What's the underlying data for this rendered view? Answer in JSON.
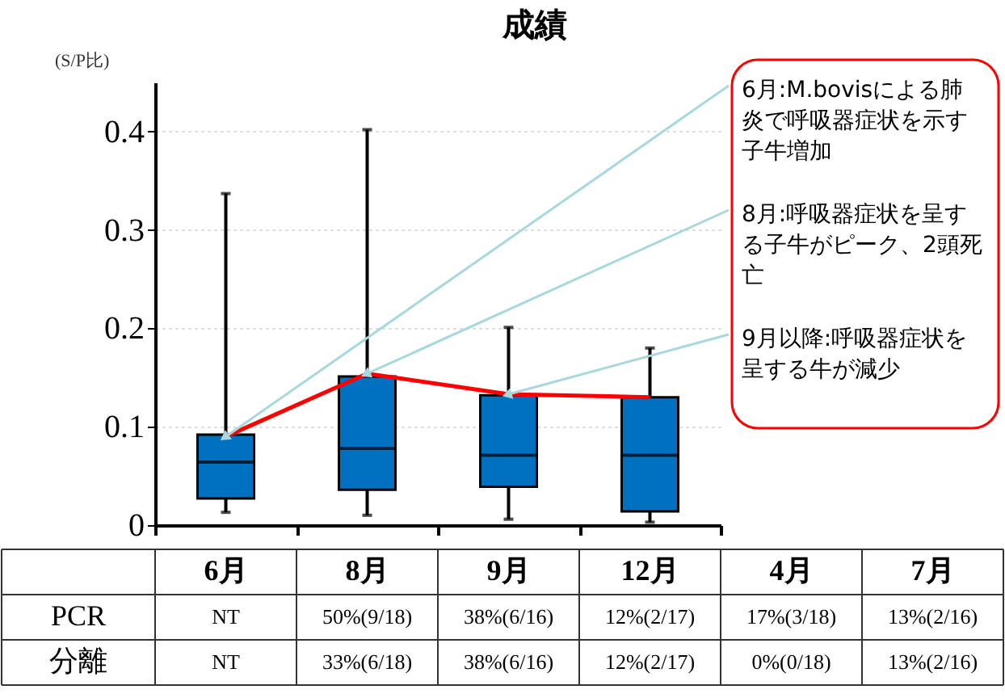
{
  "chart_data": [
    {
      "type": "box",
      "title": "成績",
      "ylabel": "(S/P比)",
      "categories": [
        null,
        null,
        null,
        null
      ],
      "ylim": [
        0,
        0.45
      ],
      "yticks": [
        0,
        0.1,
        0.2,
        0.3,
        0.4
      ],
      "grid": "y",
      "series": [
        {
          "type": "box",
          "color": "#0070c0",
          "boxes": [
            {
              "low": 0.013,
              "q1": 0.027,
              "median": 0.064,
              "q3": 0.092,
              "high": 0.337
            },
            {
              "low": 0.01,
              "q1": 0.036,
              "median": 0.078,
              "q3": 0.151,
              "high": 0.402
            },
            {
              "low": 0.006,
              "q1": 0.039,
              "median": 0.071,
              "q3": 0.132,
              "high": 0.201
            },
            {
              "low": 0.003,
              "q1": 0.014,
              "median": 0.071,
              "q3": 0.13,
              "high": 0.18
            }
          ]
        },
        {
          "type": "line",
          "color": "#ff0000",
          "values": [
            0.09,
            0.154,
            0.133,
            0.13
          ]
        }
      ],
      "annotations": [
        "6月:M.bovisによる肺炎で呼吸器症状を示す子牛増加",
        "8月:呼吸器症状を呈する子牛がピーク、2頭死亡",
        "9月以降:呼吸器症状を呈する牛が減少"
      ]
    },
    {
      "type": "other",
      "categories": [
        "6月",
        "8月",
        "9月",
        "12月",
        "4月",
        "7月"
      ],
      "y_categories": [
        "PCR",
        "分離"
      ],
      "cell_labels": [
        [
          "NT",
          "50%(9/18)",
          "38%(6/16)",
          "12%(2/17)",
          "17%(3/18)",
          "13%(2/16)"
        ],
        [
          "NT",
          "33%(6/18)",
          "38%(6/16)",
          "12%(2/17)",
          "0%(0/18)",
          "13%(2/16)"
        ]
      ]
    }
  ]
}
